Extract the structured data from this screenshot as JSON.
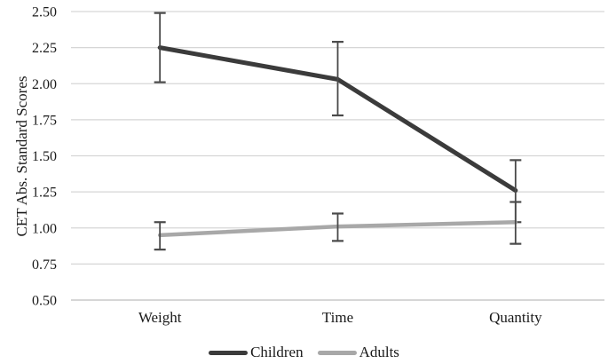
{
  "figure": {
    "background": "#ffffff",
    "text_color": "#1a1a1a",
    "gridline_color": "#d6d6d6",
    "baseline_color": "#bdbdbd"
  },
  "chart_data": {
    "type": "line",
    "title": "",
    "xlabel": "",
    "ylabel": "CET Abs. Standard Scores",
    "categories": [
      "Weight",
      "Time",
      "Quantity"
    ],
    "series": [
      {
        "name": "Children",
        "color": "#3b3b3b",
        "values": [
          2.25,
          2.03,
          1.26
        ],
        "err_low": [
          2.01,
          1.78,
          1.04
        ],
        "err_high": [
          2.49,
          2.29,
          1.47
        ]
      },
      {
        "name": "Adults",
        "color": "#a8a8a8",
        "values": [
          0.95,
          1.01,
          1.04
        ],
        "err_low": [
          0.85,
          0.91,
          0.89
        ],
        "err_high": [
          1.04,
          1.1,
          1.18
        ]
      }
    ],
    "error_bar_color": "#4a4a4a",
    "ylim": [
      0.5,
      2.5
    ],
    "yticks": [
      "2.50",
      "2.25",
      "2.00",
      "1.75",
      "1.50",
      "1.25",
      "1.00",
      "0.75",
      "0.50"
    ],
    "grid": "horizontal",
    "legend_position": "bottom"
  }
}
